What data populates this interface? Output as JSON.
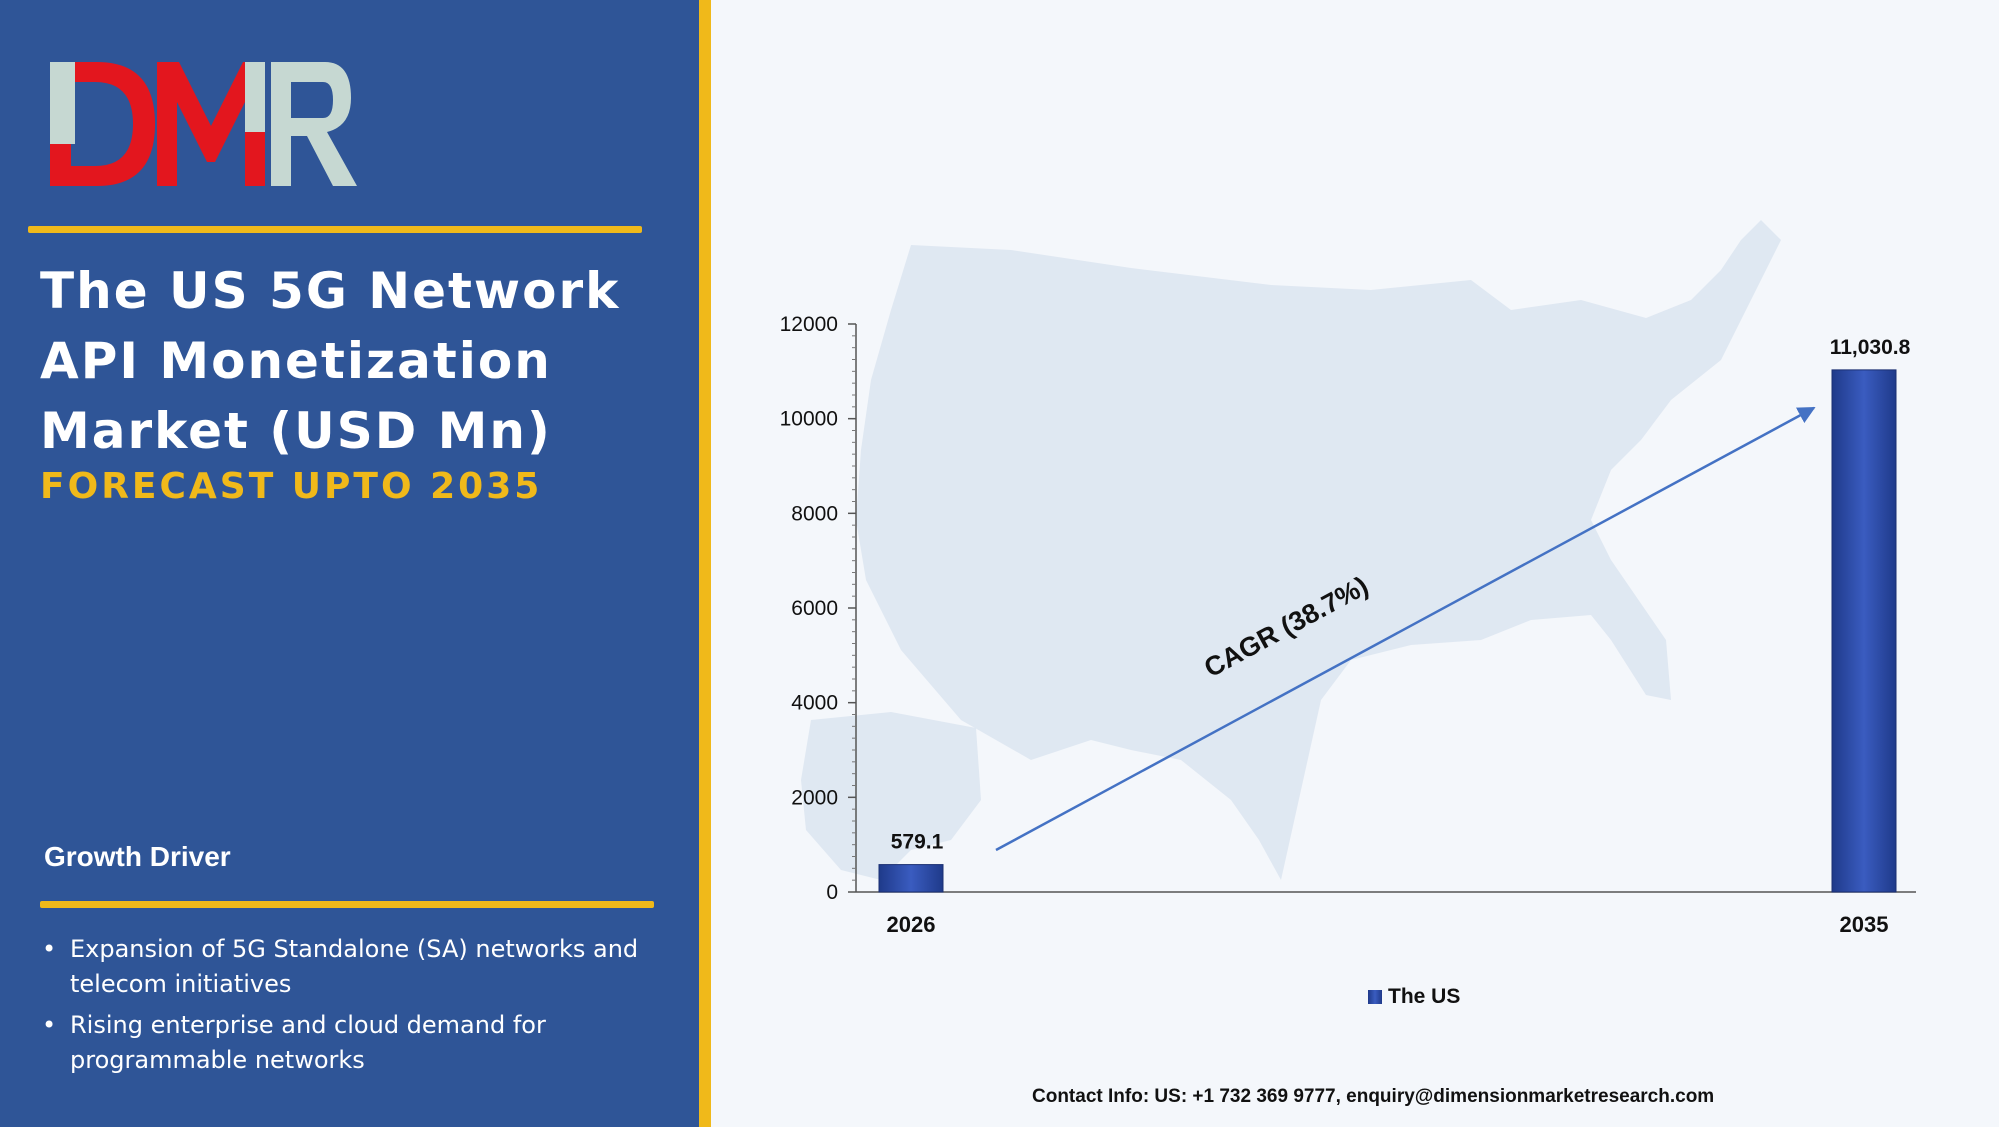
{
  "brand": {
    "logo_text": "DMR",
    "colors": {
      "panel": "#2f5597",
      "accent": "#f0b91a",
      "logo_red": "#e3161e",
      "logo_grey": "#c6d8d2",
      "bar": "#2e4ea8"
    }
  },
  "left_panel": {
    "title_lines": [
      "The US 5G Network",
      "API Monetization",
      "Market (USD Mn)"
    ],
    "subtitle": "FORECAST UPTO 2035",
    "growth_driver": {
      "heading": "Growth Driver",
      "items": [
        {
          "line1": "Expansion of 5G Standalone (SA) networks and",
          "line2": "telecom initiatives"
        },
        {
          "line1": "Rising enterprise and cloud demand for",
          "line2": "programmable networks"
        }
      ]
    }
  },
  "chart_data": {
    "type": "bar",
    "categories": [
      "2026",
      "2035"
    ],
    "series": [
      {
        "name": "The US",
        "values": [
          579.1,
          11030.8
        ],
        "labels": [
          "579.1",
          "11,030.8"
        ]
      }
    ],
    "ylim": [
      0,
      12000
    ],
    "yticks": [
      0,
      2000,
      4000,
      6000,
      8000,
      10000,
      12000
    ],
    "annotation": "CAGR (38.7%)",
    "legend_position": "bottom-center",
    "background": "US map silhouette"
  },
  "contact": "Contact Info: US: +1 732 369 9777, enquiry@dimensionmarketresearch.com"
}
